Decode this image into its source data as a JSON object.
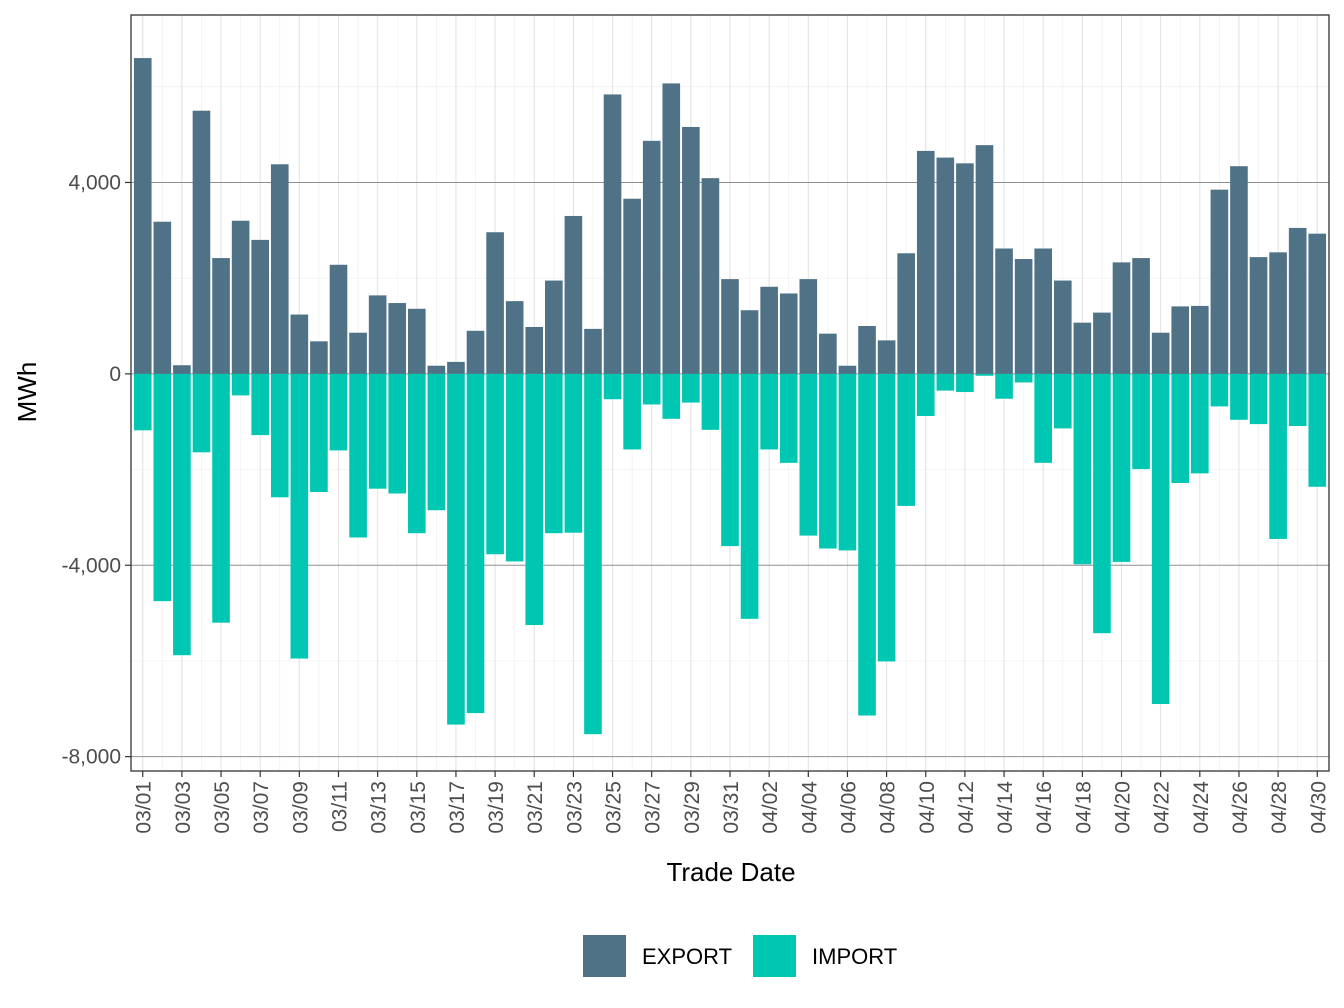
{
  "chart_data": {
    "type": "bar",
    "stacked": "diverging",
    "title": "",
    "xlabel": "Trade Date",
    "ylabel": "MWh",
    "ylim": [
      -8300,
      7500
    ],
    "yticks": [
      -8000,
      -4000,
      0,
      4000
    ],
    "ytick_labels": [
      "-8,000",
      "-4,000",
      "0",
      "4,000"
    ],
    "grid": true,
    "legend_position": "bottom",
    "categories": [
      "03/01",
      "03/02",
      "03/03",
      "03/04",
      "03/05",
      "03/06",
      "03/07",
      "03/08",
      "03/09",
      "03/10",
      "03/11",
      "03/12",
      "03/13",
      "03/14",
      "03/15",
      "03/16",
      "03/17",
      "03/18",
      "03/19",
      "03/20",
      "03/21",
      "03/22",
      "03/23",
      "03/24",
      "03/25",
      "03/26",
      "03/27",
      "03/28",
      "03/29",
      "03/30",
      "03/31",
      "04/01",
      "04/02",
      "04/03",
      "04/04",
      "04/05",
      "04/06",
      "04/07",
      "04/08",
      "04/09",
      "04/10",
      "04/11",
      "04/12",
      "04/13",
      "04/14",
      "04/15",
      "04/16",
      "04/17",
      "04/18",
      "04/19",
      "04/20",
      "04/21",
      "04/22",
      "04/23",
      "04/24",
      "04/25",
      "04/26",
      "04/27",
      "04/28",
      "04/29",
      "04/30"
    ],
    "xtick_labels": [
      "03/01",
      "03/03",
      "03/05",
      "03/07",
      "03/09",
      "03/11",
      "03/13",
      "03/15",
      "03/17",
      "03/19",
      "03/21",
      "03/23",
      "03/25",
      "03/27",
      "03/29",
      "03/31",
      "04/02",
      "04/04",
      "04/06",
      "04/08",
      "04/10",
      "04/12",
      "04/14",
      "04/16",
      "04/18",
      "04/20",
      "04/22",
      "04/24",
      "04/26",
      "04/28",
      "04/30"
    ],
    "series": [
      {
        "name": "EXPORT",
        "color": "#4f7286",
        "values": [
          6600,
          3180,
          180,
          5500,
          2420,
          3200,
          2800,
          4380,
          1240,
          680,
          2280,
          860,
          1640,
          1480,
          1360,
          170,
          250,
          900,
          2960,
          1520,
          980,
          1950,
          3300,
          940,
          5840,
          3660,
          4870,
          6070,
          5160,
          4090,
          1980,
          1330,
          1820,
          1680,
          1980,
          840,
          170,
          1000,
          700,
          2520,
          4660,
          4520,
          4400,
          4780,
          2620,
          2400,
          2620,
          1950,
          1070,
          1280,
          2330,
          2420,
          860,
          1410,
          1420,
          3850,
          4340,
          2440,
          2540,
          3050,
          2930
        ]
      },
      {
        "name": "IMPORT",
        "color": "#00c7b2",
        "values": [
          -1180,
          -4750,
          -5880,
          -1640,
          -5200,
          -450,
          -1280,
          -2580,
          -5950,
          -2470,
          -1600,
          -3420,
          -2400,
          -2500,
          -3330,
          -2850,
          -7330,
          -7090,
          -3770,
          -3920,
          -5250,
          -3330,
          -3320,
          -7530,
          -530,
          -1580,
          -640,
          -940,
          -600,
          -1170,
          -3600,
          -5120,
          -1580,
          -1860,
          -3380,
          -3650,
          -3690,
          -7140,
          -6010,
          -2760,
          -880,
          -350,
          -380,
          -40,
          -520,
          -180,
          -1860,
          -1140,
          -3980,
          -5420,
          -3930,
          -1990,
          -6900,
          -2280,
          -2080,
          -680,
          -960,
          -1050,
          -3450,
          -1090,
          -2360
        ]
      }
    ]
  }
}
